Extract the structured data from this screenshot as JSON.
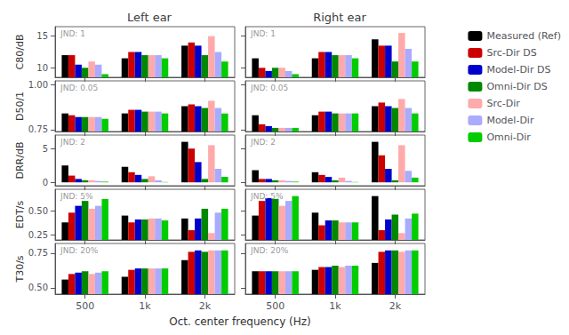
{
  "chart_data": [
    {
      "type": "bar",
      "title": "Left ear",
      "ylabel": "C80/dB",
      "annotation": "JND: 1",
      "categories": [
        "500",
        "1k",
        "2k"
      ],
      "series": [
        {
          "name": "Measured (Ref)",
          "color": "#000000",
          "values": [
            12.0,
            11.5,
            13.5
          ]
        },
        {
          "name": "Src-Dir DS",
          "color": "#cc0000",
          "values": [
            12.0,
            12.5,
            14.0
          ]
        },
        {
          "name": "Model-Dir DS",
          "color": "#0000cc",
          "values": [
            10.5,
            12.5,
            13.5
          ]
        },
        {
          "name": "Omni-Dir DS",
          "color": "#008800",
          "values": [
            10.0,
            12.0,
            12.0
          ]
        },
        {
          "name": "Src-Dir",
          "color": "#ffaaaa",
          "values": [
            11.0,
            12.0,
            15.0
          ]
        },
        {
          "name": "Model-Dir",
          "color": "#aaaaff",
          "values": [
            10.5,
            12.0,
            12.5
          ]
        },
        {
          "name": "Omni-Dir",
          "color": "#00cc00",
          "values": [
            9.0,
            11.5,
            11.0
          ]
        }
      ],
      "ylim": [
        8.5,
        16.5
      ],
      "yticks": [
        10,
        15
      ],
      "grid": false,
      "tick_labels": "y"
    },
    {
      "type": "bar",
      "title": "Right ear",
      "annotation": "JND: 1",
      "categories": [
        "500",
        "1k",
        "2k"
      ],
      "series": [
        {
          "name": "Measured (Ref)",
          "color": "#000000",
          "values": [
            11.5,
            11.5,
            14.5
          ]
        },
        {
          "name": "Src-Dir DS",
          "color": "#cc0000",
          "values": [
            10.0,
            12.5,
            13.5
          ]
        },
        {
          "name": "Model-Dir DS",
          "color": "#0000cc",
          "values": [
            9.5,
            12.5,
            13.5
          ]
        },
        {
          "name": "Omni-Dir DS",
          "color": "#008800",
          "values": [
            10.0,
            12.0,
            11.0
          ]
        },
        {
          "name": "Src-Dir",
          "color": "#ffaaaa",
          "values": [
            10.0,
            12.0,
            15.5
          ]
        },
        {
          "name": "Model-Dir",
          "color": "#aaaaff",
          "values": [
            9.5,
            12.0,
            13.0
          ]
        },
        {
          "name": "Omni-Dir",
          "color": "#00cc00",
          "values": [
            9.0,
            11.5,
            11.0
          ]
        }
      ],
      "ylim": [
        8.5,
        16.5
      ],
      "yticks": [
        10,
        15
      ],
      "grid": false,
      "tick_labels": false,
      "legend": "right"
    },
    {
      "type": "bar",
      "ylabel": "D50/1",
      "annotation": "JND: 0.05",
      "categories": [
        "500",
        "1k",
        "2k"
      ],
      "series": [
        {
          "name": "Measured (Ref)",
          "color": "#000000",
          "values": [
            0.84,
            0.84,
            0.88
          ]
        },
        {
          "name": "Src-Dir DS",
          "color": "#cc0000",
          "values": [
            0.83,
            0.86,
            0.89
          ]
        },
        {
          "name": "Model-Dir DS",
          "color": "#0000cc",
          "values": [
            0.82,
            0.86,
            0.88
          ]
        },
        {
          "name": "Omni-Dir DS",
          "color": "#008800",
          "values": [
            0.82,
            0.85,
            0.87
          ]
        },
        {
          "name": "Src-Dir",
          "color": "#ffaaaa",
          "values": [
            0.82,
            0.85,
            0.91
          ]
        },
        {
          "name": "Model-Dir",
          "color": "#aaaaff",
          "values": [
            0.82,
            0.85,
            0.87
          ]
        },
        {
          "name": "Omni-Dir",
          "color": "#00cc00",
          "values": [
            0.81,
            0.84,
            0.84
          ]
        }
      ],
      "ylim": [
        0.74,
        1.02
      ],
      "yticks": [
        0.75,
        {
          "value": 1.0,
          "label": "1.00"
        }
      ],
      "grid": false,
      "tick_labels": "y"
    },
    {
      "type": "bar",
      "annotation": "JND: 0.05",
      "categories": [
        "500",
        "1k",
        "2k"
      ],
      "series": [
        {
          "name": "Measured (Ref)",
          "color": "#000000",
          "values": [
            0.83,
            0.83,
            0.88
          ]
        },
        {
          "name": "Src-Dir DS",
          "color": "#cc0000",
          "values": [
            0.78,
            0.85,
            0.9
          ]
        },
        {
          "name": "Model-Dir DS",
          "color": "#0000cc",
          "values": [
            0.77,
            0.85,
            0.88
          ]
        },
        {
          "name": "Omni-Dir DS",
          "color": "#008800",
          "values": [
            0.76,
            0.84,
            0.87
          ]
        },
        {
          "name": "Src-Dir",
          "color": "#ffaaaa",
          "values": [
            0.76,
            0.84,
            0.92
          ]
        },
        {
          "name": "Model-Dir",
          "color": "#aaaaff",
          "values": [
            0.76,
            0.84,
            0.87
          ]
        },
        {
          "name": "Omni-Dir",
          "color": "#00cc00",
          "values": [
            0.76,
            0.84,
            0.84
          ]
        }
      ],
      "ylim": [
        0.74,
        1.02
      ],
      "yticks": [
        0.75,
        {
          "value": 1.0,
          "label": "1.00"
        }
      ],
      "grid": false,
      "tick_labels": false
    },
    {
      "type": "bar",
      "ylabel": "DRR/dB",
      "annotation": "JND: 2",
      "categories": [
        "500",
        "1k",
        "2k"
      ],
      "series": [
        {
          "name": "Measured (Ref)",
          "color": "#000000",
          "values": [
            2.5,
            2.3,
            6.0
          ]
        },
        {
          "name": "Src-Dir DS",
          "color": "#cc0000",
          "values": [
            1.0,
            1.5,
            5.0
          ]
        },
        {
          "name": "Model-Dir DS",
          "color": "#0000cc",
          "values": [
            0.5,
            1.1,
            3.0
          ]
        },
        {
          "name": "Omni-Dir DS",
          "color": "#008800",
          "values": [
            0.3,
            0.5,
            0.5
          ]
        },
        {
          "name": "Src-Dir",
          "color": "#ffaaaa",
          "values": [
            0.3,
            0.9,
            5.5
          ]
        },
        {
          "name": "Model-Dir",
          "color": "#aaaaff",
          "values": [
            0.2,
            0.3,
            2.0
          ]
        },
        {
          "name": "Omni-Dir",
          "color": "#00cc00",
          "values": [
            0.1,
            0.05,
            0.8
          ]
        }
      ],
      "ylim": [
        -0.5,
        7.0
      ],
      "yticks": [
        0,
        5
      ],
      "grid": false,
      "tick_labels": "y"
    },
    {
      "type": "bar",
      "annotation": "JND: 2",
      "categories": [
        "500",
        "1k",
        "2k"
      ],
      "series": [
        {
          "name": "Measured (Ref)",
          "color": "#000000",
          "values": [
            1.8,
            1.5,
            6.0
          ]
        },
        {
          "name": "Src-Dir DS",
          "color": "#cc0000",
          "values": [
            0.5,
            1.1,
            4.0
          ]
        },
        {
          "name": "Model-Dir DS",
          "color": "#0000cc",
          "values": [
            0.5,
            0.8,
            2.0
          ]
        },
        {
          "name": "Omni-Dir DS",
          "color": "#008800",
          "values": [
            0.3,
            0.3,
            0.3
          ]
        },
        {
          "name": "Src-Dir",
          "color": "#ffaaaa",
          "values": [
            0.3,
            0.7,
            5.5
          ]
        },
        {
          "name": "Model-Dir",
          "color": "#aaaaff",
          "values": [
            0.2,
            0.2,
            1.7
          ]
        },
        {
          "name": "Omni-Dir",
          "color": "#00cc00",
          "values": [
            0.1,
            0.05,
            0.7
          ]
        }
      ],
      "ylim": [
        -0.5,
        7.0
      ],
      "yticks": [
        0,
        5
      ],
      "grid": false,
      "tick_labels": false
    },
    {
      "type": "bar",
      "ylabel": "EDT/s",
      "annotation": "JND: 5%",
      "categories": [
        "500",
        "1k",
        "2k"
      ],
      "series": [
        {
          "name": "Measured (Ref)",
          "color": "#000000",
          "values": [
            0.38,
            0.45,
            0.42
          ]
        },
        {
          "name": "Src-Dir DS",
          "color": "#cc0000",
          "values": [
            0.48,
            0.38,
            0.3
          ]
        },
        {
          "name": "Model-Dir DS",
          "color": "#0000cc",
          "values": [
            0.55,
            0.41,
            0.42
          ]
        },
        {
          "name": "Omni-Dir DS",
          "color": "#008800",
          "values": [
            0.6,
            0.41,
            0.52
          ]
        },
        {
          "name": "Src-Dir",
          "color": "#ffaaaa",
          "values": [
            0.52,
            0.42,
            0.27
          ]
        },
        {
          "name": "Model-Dir",
          "color": "#aaaaff",
          "values": [
            0.55,
            0.42,
            0.48
          ]
        },
        {
          "name": "Omni-Dir",
          "color": "#00cc00",
          "values": [
            0.62,
            0.4,
            0.52
          ]
        }
      ],
      "ylim": [
        0.2,
        0.72
      ],
      "yticks": [
        0.25,
        {
          "value": 0.5,
          "label": "0.50"
        }
      ],
      "grid": false,
      "tick_labels": "y"
    },
    {
      "type": "bar",
      "annotation": "JND: 5%",
      "categories": [
        "500",
        "1k",
        "2k"
      ],
      "series": [
        {
          "name": "Measured (Ref)",
          "color": "#000000",
          "values": [
            0.45,
            0.48,
            0.65
          ]
        },
        {
          "name": "Src-Dir DS",
          "color": "#cc0000",
          "values": [
            0.6,
            0.35,
            0.3
          ]
        },
        {
          "name": "Model-Dir DS",
          "color": "#0000cc",
          "values": [
            0.63,
            0.4,
            0.41
          ]
        },
        {
          "name": "Omni-Dir DS",
          "color": "#008800",
          "values": [
            0.62,
            0.4,
            0.46
          ]
        },
        {
          "name": "Src-Dir",
          "color": "#ffaaaa",
          "values": [
            0.55,
            0.38,
            0.27
          ]
        },
        {
          "name": "Model-Dir",
          "color": "#aaaaff",
          "values": [
            0.6,
            0.38,
            0.42
          ]
        },
        {
          "name": "Omni-Dir",
          "color": "#00cc00",
          "values": [
            0.65,
            0.38,
            0.47
          ]
        }
      ],
      "ylim": [
        0.2,
        0.72
      ],
      "yticks": [
        0.25,
        {
          "value": 0.5,
          "label": "0.50"
        }
      ],
      "grid": false,
      "tick_labels": false
    },
    {
      "type": "bar",
      "ylabel": "T30/s",
      "annotation": "JND: 20%",
      "xlabel": "Oct. center frequency (Hz)",
      "categories": [
        "500",
        "1k",
        "2k"
      ],
      "series": [
        {
          "name": "Measured (Ref)",
          "color": "#000000",
          "values": [
            0.56,
            0.58,
            0.7
          ]
        },
        {
          "name": "Src-Dir DS",
          "color": "#cc0000",
          "values": [
            0.6,
            0.63,
            0.76
          ]
        },
        {
          "name": "Model-Dir DS",
          "color": "#0000cc",
          "values": [
            0.61,
            0.64,
            0.77
          ]
        },
        {
          "name": "Omni-Dir DS",
          "color": "#008800",
          "values": [
            0.62,
            0.64,
            0.76
          ]
        },
        {
          "name": "Src-Dir",
          "color": "#ffaaaa",
          "values": [
            0.6,
            0.64,
            0.77
          ]
        },
        {
          "name": "Model-Dir",
          "color": "#aaaaff",
          "values": [
            0.61,
            0.64,
            0.77
          ]
        },
        {
          "name": "Omni-Dir",
          "color": "#00cc00",
          "values": [
            0.62,
            0.64,
            0.77
          ]
        }
      ],
      "ylim": [
        0.455,
        0.82
      ],
      "yticks": [
        {
          "value": 0.5,
          "label": "0.50"
        },
        0.75
      ],
      "grid": false
    },
    {
      "type": "bar",
      "annotation": "JND: 20%",
      "categories": [
        "500",
        "1k",
        "2k"
      ],
      "series": [
        {
          "name": "Measured (Ref)",
          "color": "#000000",
          "values": [
            0.62,
            0.63,
            0.68
          ]
        },
        {
          "name": "Src-Dir DS",
          "color": "#cc0000",
          "values": [
            0.62,
            0.65,
            0.76
          ]
        },
        {
          "name": "Model-Dir DS",
          "color": "#0000cc",
          "values": [
            0.62,
            0.65,
            0.77
          ]
        },
        {
          "name": "Omni-Dir DS",
          "color": "#008800",
          "values": [
            0.62,
            0.66,
            0.77
          ]
        },
        {
          "name": "Src-Dir",
          "color": "#ffaaaa",
          "values": [
            0.62,
            0.65,
            0.76
          ]
        },
        {
          "name": "Model-Dir",
          "color": "#aaaaff",
          "values": [
            0.62,
            0.66,
            0.77
          ]
        },
        {
          "name": "Omni-Dir",
          "color": "#00cc00",
          "values": [
            0.62,
            0.66,
            0.77
          ]
        }
      ],
      "ylim": [
        0.455,
        0.82
      ],
      "yticks": [
        {
          "value": 0.5,
          "label": "0.50"
        },
        0.75
      ],
      "grid": false,
      "tick_labels": "x"
    }
  ]
}
